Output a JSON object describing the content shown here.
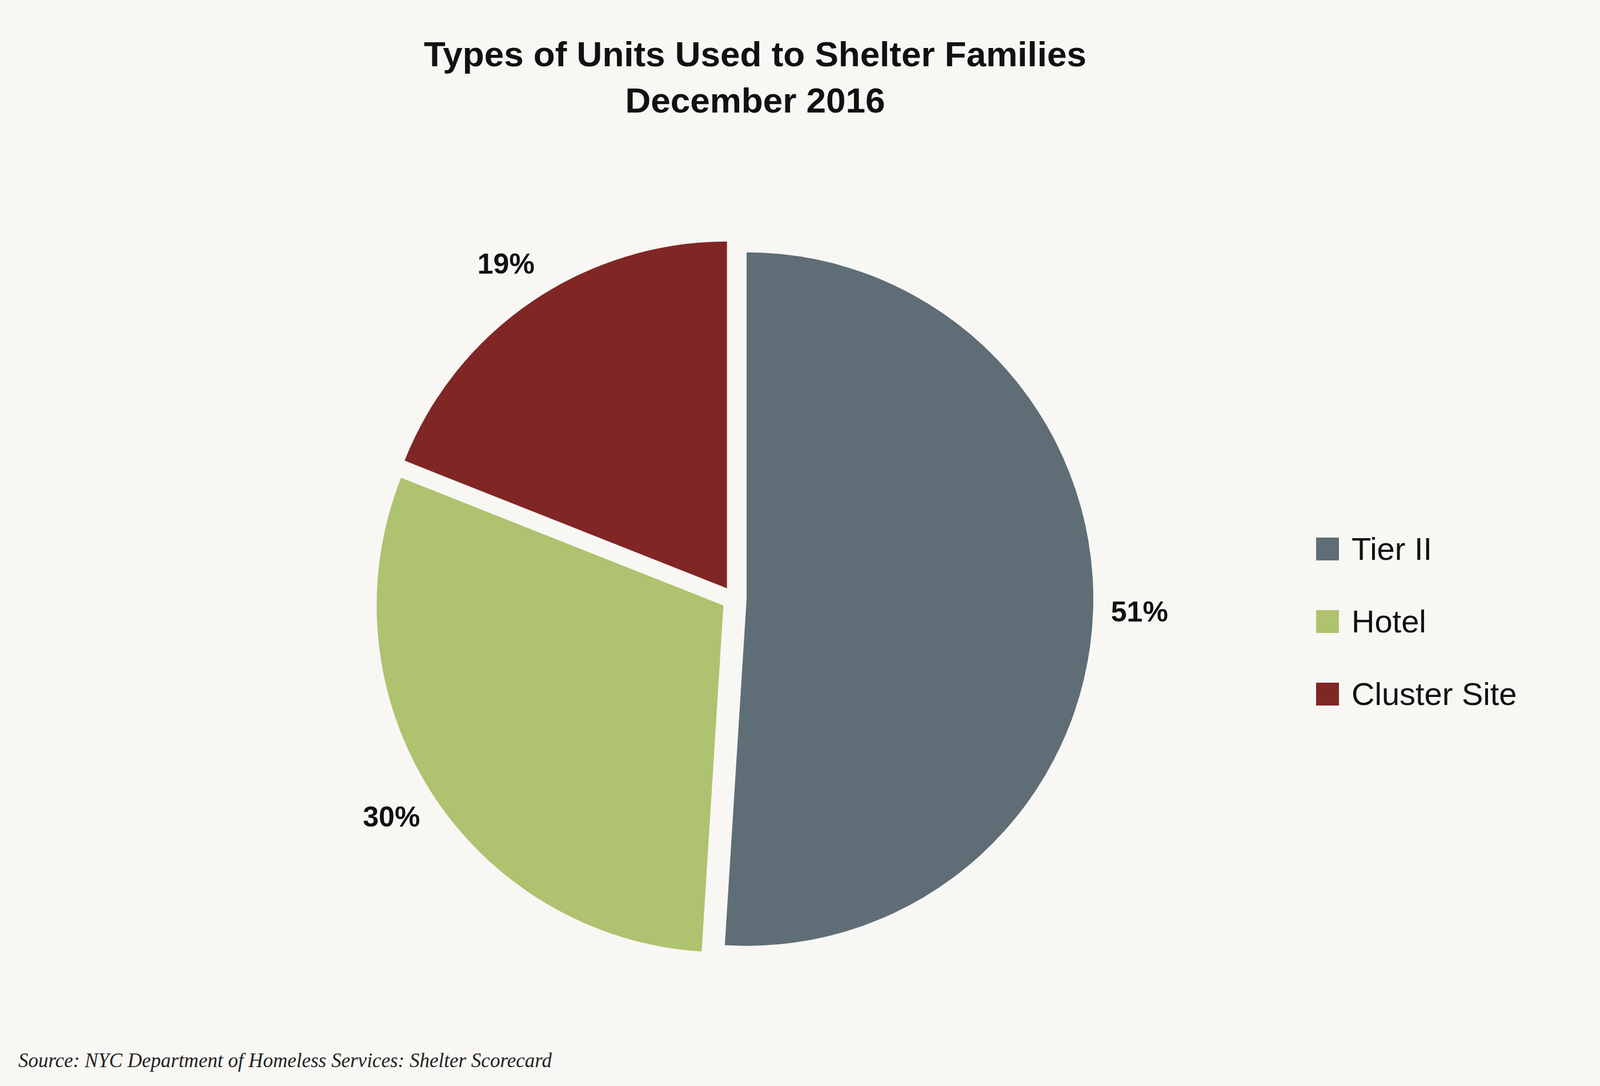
{
  "chart_data": {
    "type": "pie",
    "title": "Types of Units Used to Shelter Families",
    "subtitle": "December 2016",
    "categories": [
      "Tier II",
      "Hotel",
      "Cluster Site"
    ],
    "values": [
      51,
      30,
      19
    ],
    "value_labels": [
      "51%",
      "30%",
      "19%"
    ],
    "colors": [
      "#5f6e76",
      "#afc26f",
      "#802726"
    ],
    "data_labels": true,
    "legend": "right",
    "source": "Source:  NYC Department of Homeless Services: Shelter Scorecard"
  }
}
